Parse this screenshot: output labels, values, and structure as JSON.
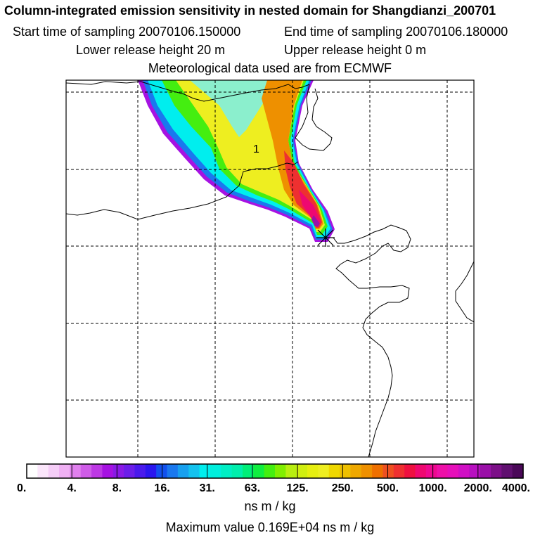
{
  "header": {
    "title": "Column-integrated emission sensitivity in nested domain for Shangdianzi_200701",
    "start_label": "Start time of sampling 20070106.150000",
    "end_label": "End time of sampling 20070106.180000",
    "lower_label": "Lower release height   20 m",
    "upper_label": "Upper release height    0 m",
    "met_label": "Meteorological data used are from ECMWF"
  },
  "map": {
    "release_marker_label": "1"
  },
  "chart_data": {
    "type": "heatmap",
    "title": "Column-integrated emission sensitivity in nested domain for Shangdianzi_200701",
    "colorbar": {
      "tick_labels": [
        "0.",
        "4.",
        "8.",
        "16.",
        "31.",
        "63.",
        "125.",
        "250.",
        "500.",
        "1000.",
        "2000.",
        "4000."
      ],
      "tick_values": [
        0,
        4,
        8,
        16,
        31,
        63,
        125,
        250,
        500,
        1000,
        2000,
        4000
      ],
      "colors": [
        "#ffffff",
        "#fbe6fb",
        "#f5cdf7",
        "#efb0f3",
        "#e080ee",
        "#cf5ce8",
        "#bd38e4",
        "#a612e2",
        "#8a1ae6",
        "#6c1ee9",
        "#4a1aec",
        "#2a16ee",
        "#1250ee",
        "#1a78ee",
        "#18a0ee",
        "#14c2ee",
        "#00eeee",
        "#00eedc",
        "#00eec4",
        "#00eeac",
        "#00ee78",
        "#10ee40",
        "#44ee10",
        "#80ee00",
        "#b8ee10",
        "#d0ee10",
        "#e6ee10",
        "#eeee20",
        "#eed800",
        "#eec000",
        "#eea800",
        "#ee9000",
        "#ee7000",
        "#ee5020",
        "#ee3030",
        "#ee1040",
        "#ee0870",
        "#ee0890",
        "#ee10a8",
        "#e610ba",
        "#d010c4",
        "#b810c0",
        "#9a10a8",
        "#7c1088",
        "#601070",
        "#4a0858"
      ],
      "units": "ns m / kg"
    },
    "max_value_text": "Maximum value  0.169E+04 ns m / kg",
    "max_value": 1690,
    "grid": true
  }
}
